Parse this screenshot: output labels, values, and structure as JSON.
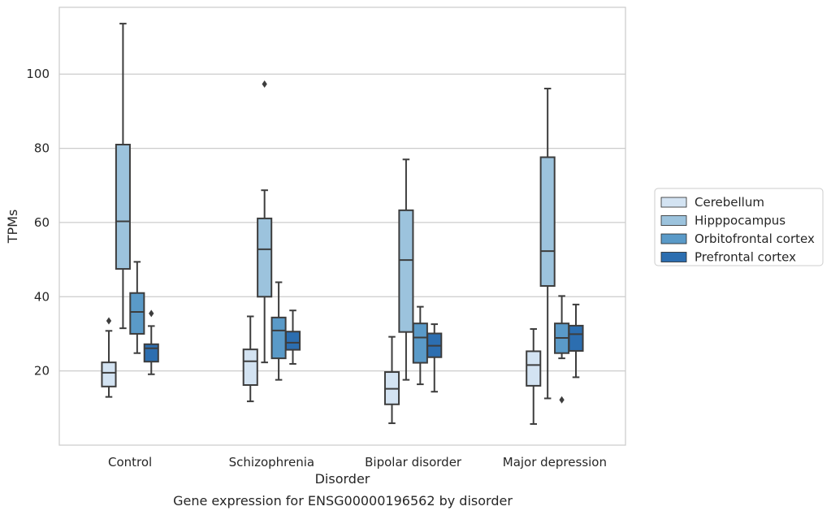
{
  "chart_data": {
    "type": "box",
    "title": "",
    "caption": "Gene expression for ENSG00000196562 by disorder",
    "xlabel": "Disorder",
    "ylabel": "TPMs",
    "ylim": [
      0,
      118
    ],
    "yticks": [
      20,
      40,
      60,
      80,
      100
    ],
    "grid": true,
    "legend_placement": "right",
    "categories": [
      "Control",
      "Schizophrenia",
      "Bipolar disorder",
      "Major depression"
    ],
    "series": [
      {
        "name": "Cerebellum",
        "color": "#d3e3f2",
        "boxes": [
          {
            "min": 13.0,
            "q1": 15.8,
            "median": 19.5,
            "q3": 22.3,
            "max": 30.8,
            "outliers": [
              33.5
            ]
          },
          {
            "min": 11.8,
            "q1": 16.2,
            "median": 22.6,
            "q3": 25.8,
            "max": 34.7,
            "outliers": []
          },
          {
            "min": 5.9,
            "q1": 11.0,
            "median": 15.2,
            "q3": 19.7,
            "max": 29.2,
            "outliers": []
          },
          {
            "min": 5.7,
            "q1": 16.0,
            "median": 21.6,
            "q3": 25.3,
            "max": 31.3,
            "outliers": []
          }
        ]
      },
      {
        "name": "Hipppocampus",
        "color": "#9cc3dd",
        "boxes": [
          {
            "min": 31.5,
            "q1": 47.5,
            "median": 60.3,
            "q3": 81.0,
            "max": 113.6,
            "outliers": []
          },
          {
            "min": 22.3,
            "q1": 40.0,
            "median": 52.8,
            "q3": 61.1,
            "max": 68.7,
            "outliers": [
              97.3
            ]
          },
          {
            "min": 17.6,
            "q1": 30.5,
            "median": 49.9,
            "q3": 63.3,
            "max": 77.0,
            "outliers": []
          },
          {
            "min": 12.6,
            "q1": 42.9,
            "median": 52.3,
            "q3": 77.6,
            "max": 96.1,
            "outliers": []
          }
        ]
      },
      {
        "name": "Orbitofrontal cortex",
        "color": "#5a9ac8",
        "boxes": [
          {
            "min": 24.8,
            "q1": 30.0,
            "median": 35.9,
            "q3": 41.0,
            "max": 49.4,
            "outliers": []
          },
          {
            "min": 17.6,
            "q1": 23.4,
            "median": 30.9,
            "q3": 34.4,
            "max": 43.9,
            "outliers": []
          },
          {
            "min": 16.4,
            "q1": 22.2,
            "median": 29.0,
            "q3": 32.8,
            "max": 37.3,
            "outliers": []
          },
          {
            "min": 23.4,
            "q1": 24.8,
            "median": 28.9,
            "q3": 32.8,
            "max": 40.2,
            "outliers": [
              12.2
            ]
          }
        ]
      },
      {
        "name": "Prefrontal cortex",
        "color": "#2c6eb0",
        "boxes": [
          {
            "min": 19.1,
            "q1": 22.5,
            "median": 26.1,
            "q3": 27.2,
            "max": 32.1,
            "outliers": [
              35.5
            ]
          },
          {
            "min": 21.9,
            "q1": 25.7,
            "median": 27.6,
            "q3": 30.6,
            "max": 36.3,
            "outliers": []
          },
          {
            "min": 14.4,
            "q1": 23.7,
            "median": 26.8,
            "q3": 30.1,
            "max": 32.6,
            "outliers": []
          },
          {
            "min": 18.3,
            "q1": 25.4,
            "median": 29.9,
            "q3": 32.2,
            "max": 37.9,
            "outliers": []
          }
        ]
      }
    ]
  }
}
